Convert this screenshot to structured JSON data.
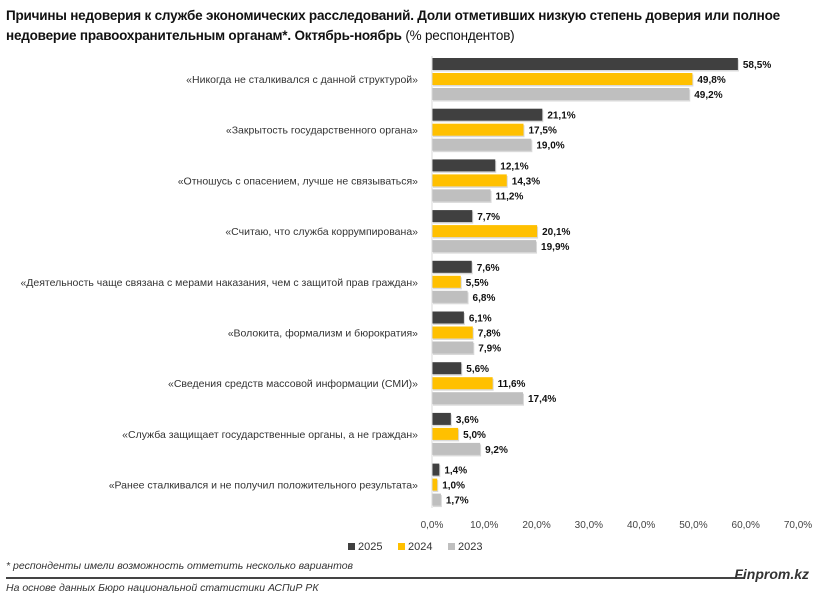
{
  "title_bold": "Причины недоверия к службе экономических расследований. Доли отметивших низкую степень доверия или полное недоверие правоохранительным органам*. Октябрь-ноябрь",
  "title_normal": "(% респондентов)",
  "footnote": "* респонденты имели возможность отметить несколько вариантов",
  "source": "На основе данных Бюро национальной статистики АСПиР РК",
  "brand": "Finprom.kz",
  "chart_data": {
    "type": "bar",
    "orientation": "horizontal",
    "categories": [
      "«Никогда не сталкивался с данной структурой»",
      "«Закрытость государственного органа»",
      "«Отношусь с опасением, лучше не связываться»",
      "«Считаю, что служба коррумпирована»",
      "«Деятельность чаще связана с мерами наказания, чем с защитой прав граждан»",
      "«Волокита, формализм и бюрократия»",
      "«Сведения средств массовой информации (СМИ)»",
      "«Служба защищает государственные органы, а не граждан»",
      "«Ранее сталкивался и не получил положительного результата»"
    ],
    "series": [
      {
        "name": "2025",
        "color": "#404040",
        "values": [
          58.5,
          21.1,
          12.1,
          7.7,
          7.6,
          6.1,
          5.6,
          3.6,
          1.4
        ],
        "labels": [
          "58,5%",
          "21,1%",
          "12,1%",
          "7,7%",
          "7,6%",
          "6,1%",
          "5,6%",
          "3,6%",
          "1,4%"
        ]
      },
      {
        "name": "2024",
        "color": "#FFC000",
        "values": [
          49.8,
          17.5,
          14.3,
          20.1,
          5.5,
          7.8,
          11.6,
          5.0,
          1.0
        ],
        "labels": [
          "49,8%",
          "17,5%",
          "14,3%",
          "20,1%",
          "5,5%",
          "7,8%",
          "11,6%",
          "5,0%",
          "1,0%"
        ]
      },
      {
        "name": "2023",
        "color": "#BFBFBF",
        "values": [
          49.2,
          19.0,
          11.2,
          19.9,
          6.8,
          7.9,
          17.4,
          9.2,
          1.7
        ],
        "labels": [
          "49,2%",
          "19,0%",
          "11,2%",
          "19,9%",
          "6,8%",
          "7,9%",
          "17,4%",
          "9,2%",
          "1,7%"
        ]
      }
    ],
    "xlim": [
      0,
      70
    ],
    "xticks": [
      0,
      10,
      20,
      30,
      40,
      50,
      60,
      70
    ],
    "xtick_labels": [
      "0,0%",
      "10,0%",
      "20,0%",
      "30,0%",
      "40,0%",
      "50,0%",
      "60,0%",
      "70,0%"
    ],
    "grid": false,
    "legend": "bottom"
  }
}
